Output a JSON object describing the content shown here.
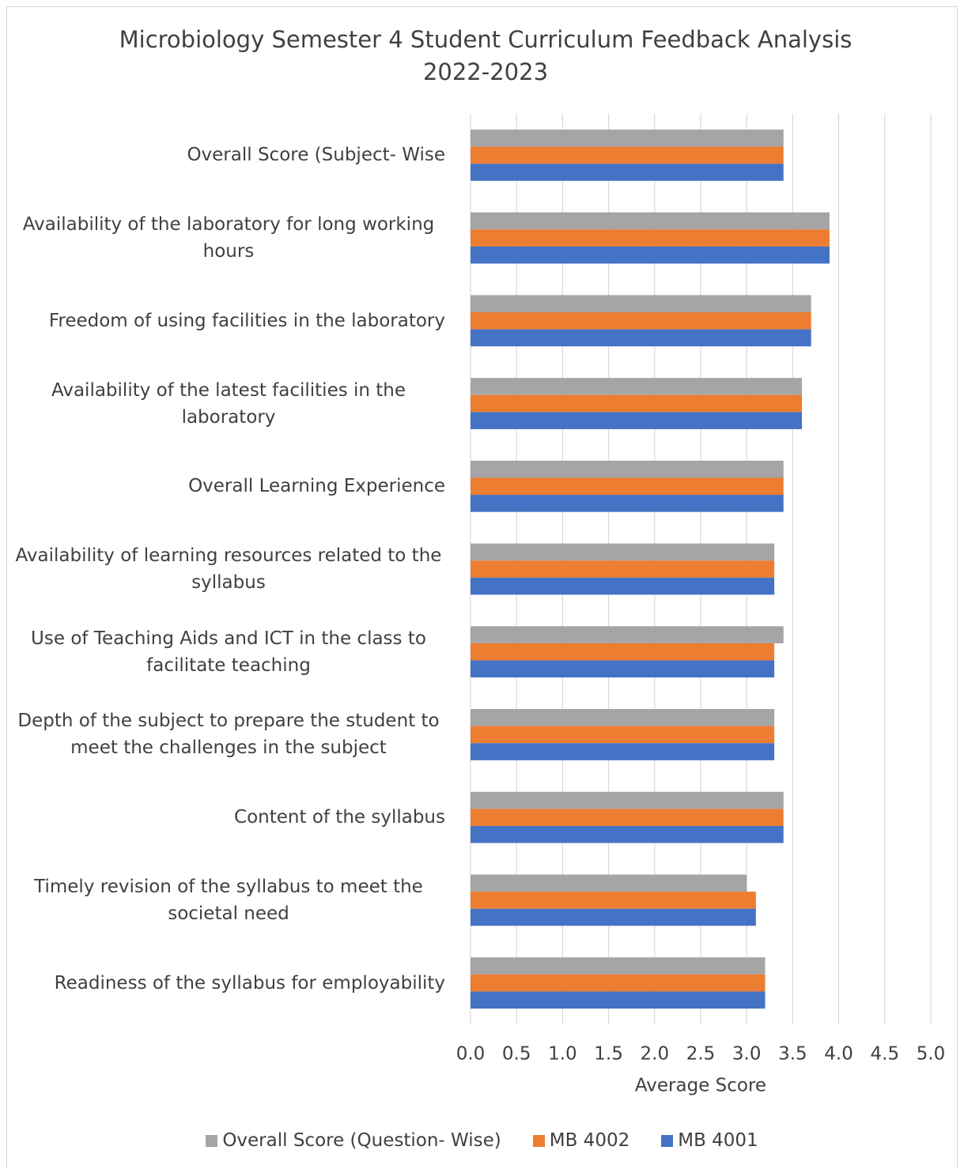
{
  "chart_data": {
    "type": "barh",
    "title": [
      "Microbiology Semester 4 Student Curriculum Feedback Analysis",
      "2022-2023"
    ],
    "x_label": "Average Score",
    "categories": [
      "Overall Score (Subject- Wise",
      "Availability of the laboratory for long working hours",
      "Freedom of using facilities in the laboratory",
      "Availability of the latest facilities in the laboratory",
      "Overall Learning Experience",
      "Availability of learning resources related to the syllabus",
      "Use of Teaching Aids and ICT in the class to facilitate teaching",
      "Depth of the subject to prepare the student to meet the challenges in the subject",
      "Content of the syllabus",
      "Timely revision of the syllabus to meet the societal need",
      "Readiness of the syllabus for employability"
    ],
    "series": [
      {
        "name": "Overall Score (Question- Wise)",
        "color": "#a5a5a5",
        "values": [
          3.4,
          3.9,
          3.7,
          3.6,
          3.4,
          3.3,
          3.4,
          3.3,
          3.4,
          3.0,
          3.2
        ]
      },
      {
        "name": "MB 4002",
        "color": "#ed7d31",
        "values": [
          3.4,
          3.9,
          3.7,
          3.6,
          3.4,
          3.3,
          3.3,
          3.3,
          3.4,
          3.1,
          3.2
        ]
      },
      {
        "name": "MB 4001",
        "color": "#4472c4",
        "values": [
          3.4,
          3.9,
          3.7,
          3.6,
          3.4,
          3.3,
          3.3,
          3.3,
          3.4,
          3.1,
          3.2
        ]
      }
    ],
    "xlim": [
      0,
      5
    ],
    "xticks": [
      {
        "value": 0,
        "label": "0.0"
      },
      0.5,
      {
        "value": 1,
        "label": "1.0"
      },
      1.5,
      {
        "value": 2,
        "label": "2.0"
      },
      2.5,
      {
        "value": 3,
        "label": "3.0"
      },
      3.5,
      {
        "value": 4,
        "label": "4.0"
      },
      4.5,
      {
        "value": 5,
        "label": "5.0"
      }
    ],
    "grid": true,
    "legend": "bottom"
  }
}
